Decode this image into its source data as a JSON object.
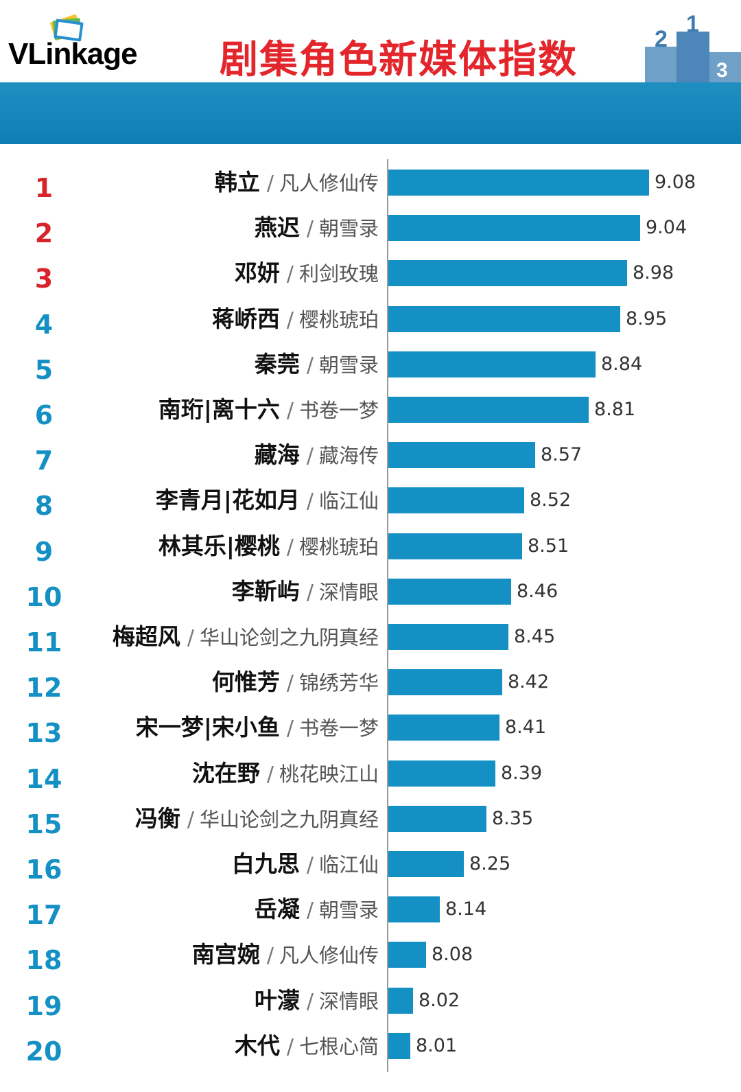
{
  "header": {
    "logo_text": "VLinkage",
    "title": "剧集角色新媒体指数"
  },
  "colors": {
    "bar": "#1490c4",
    "title": "#e2262b",
    "top_rank": "#d8232a",
    "rank": "#1490c4",
    "banner": "#1187bd"
  },
  "chart_data": {
    "type": "bar",
    "orientation": "horizontal",
    "title": "剧集角色新媒体指数",
    "ranks": [
      "1",
      "2",
      "3",
      "4",
      "5",
      "6",
      "7",
      "8",
      "9",
      "10",
      "11",
      "12",
      "13",
      "14",
      "15",
      "16",
      "17",
      "18",
      "19",
      "20"
    ],
    "categories": [
      "韩立",
      "燕迟",
      "邓妍",
      "蒋峤西",
      "秦莞",
      "南珩|离十六",
      "藏海",
      "李青月|花如月",
      "林其乐|樱桃",
      "李靳屿",
      "梅超风",
      "何惟芳",
      "宋一梦|宋小鱼",
      "沈在野",
      "冯衡",
      "白九思",
      "岳凝",
      "南宫婉",
      "叶濛",
      "木代"
    ],
    "dramas": [
      "凡人修仙传",
      "朝雪录",
      "利剑玫瑰",
      "樱桃琥珀",
      "朝雪录",
      "书卷一梦",
      "藏海传",
      "临江仙",
      "樱桃琥珀",
      "深情眼",
      "华山论剑之九阴真经",
      "锦绣芳华",
      "书卷一梦",
      "桃花映江山",
      "华山论剑之九阴真经",
      "临江仙",
      "朝雪录",
      "凡人修仙传",
      "深情眼",
      "七根心简"
    ],
    "values": [
      9.08,
      9.04,
      8.98,
      8.95,
      8.84,
      8.81,
      8.57,
      8.52,
      8.51,
      8.46,
      8.45,
      8.42,
      8.41,
      8.39,
      8.35,
      8.25,
      8.14,
      8.08,
      8.02,
      8.01
    ],
    "value_labels": [
      "9.08",
      "9.04",
      "8.98",
      "8.95",
      "8.84",
      "8.81",
      "8.57",
      "8.52",
      "8.51",
      "8.46",
      "8.45",
      "8.42",
      "8.41",
      "8.39",
      "8.35",
      "8.25",
      "8.14",
      "8.08",
      "8.02",
      "8.01"
    ],
    "separator": "/",
    "xlim": [
      7.91,
      9.08
    ],
    "grid": false,
    "legend": "none"
  }
}
